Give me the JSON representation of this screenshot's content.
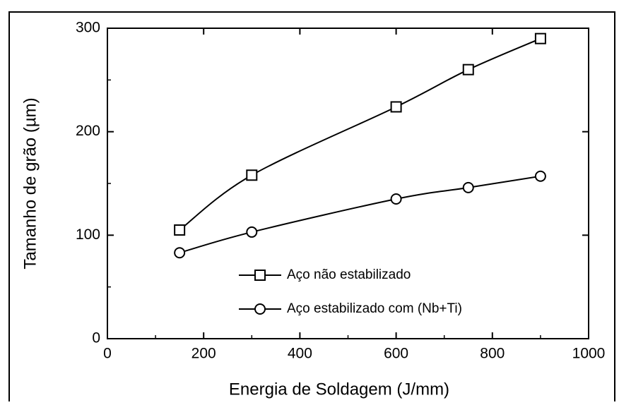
{
  "chart_data": {
    "type": "line",
    "x_label": "Energia de Soldagem (J/mm)",
    "y_label": "Tamanho de grão (µm)",
    "x": [
      150,
      300,
      600,
      750,
      900
    ],
    "series": [
      {
        "name": "Aço não estabilizado",
        "color": "#000000",
        "marker": "square",
        "values": [
          105,
          158,
          224,
          260,
          290
        ]
      },
      {
        "name": "Aço estabilizado com (Nb+Ti)",
        "color": "#000000",
        "marker": "circle",
        "values": [
          83,
          103,
          135,
          146,
          157
        ]
      }
    ],
    "xlim": [
      0,
      1000
    ],
    "xticks": [
      0,
      200,
      400,
      600,
      800,
      1000
    ],
    "ylim": [
      0,
      300
    ],
    "yticks": [
      0,
      100,
      200,
      300
    ],
    "grid": false
  }
}
